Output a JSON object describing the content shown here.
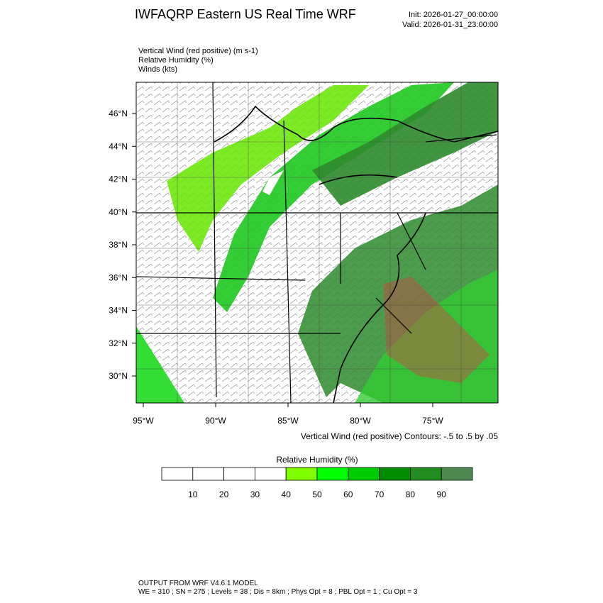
{
  "header": {
    "title": "IWFAQRP Eastern US Real Time WRF",
    "init": "Init: 2026-01-27_00:00:00",
    "valid": "Valid: 2026-01-31_23:00:00"
  },
  "fields": [
    "Vertical Wind (red positive)   (m s-1)",
    "Relative Humidity   (%)",
    "Winds   (kts)"
  ],
  "map": {
    "lat_labels": [
      "46°N",
      "44°N",
      "42°N",
      "40°N",
      "38°N",
      "36°N",
      "34°N",
      "32°N",
      "30°N"
    ],
    "lon_labels": [
      "95°W",
      "90°W",
      "85°W",
      "80°W",
      "75°W"
    ],
    "contour_note": "Vertical Wind (red positive) Contours: -.5 to .5 by .05"
  },
  "colorbar": {
    "title": "Relative Humidity  (%)",
    "labels": [
      "10",
      "20",
      "30",
      "40",
      "50",
      "60",
      "70",
      "80",
      "90"
    ],
    "colors": [
      "#ffffff",
      "#ffffff",
      "#ffffff",
      "#ffffff",
      "#7fff00",
      "#00ff00",
      "#00cd00",
      "#008b00",
      "#228b22",
      "#4e8a50"
    ]
  },
  "footer": {
    "line1": "OUTPUT FROM WRF V4.6.1 MODEL",
    "line2": "WE = 310 ; SN = 275 ; Levels = 38 ; Dis = 8km ; Phys Opt = 8 ; PBL Opt = 1 ; Cu Opt = 3"
  }
}
